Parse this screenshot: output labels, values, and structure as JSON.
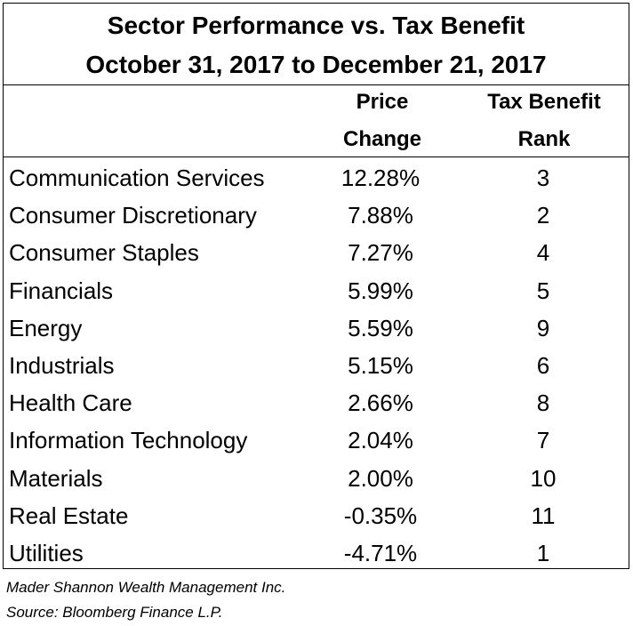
{
  "chart_data": {
    "type": "table",
    "title": "Sector Performance vs. Tax Benefit",
    "subtitle": "October 31, 2017 to December 21, 2017",
    "columns": [
      {
        "line1": "",
        "line2": ""
      },
      {
        "line1": "Price",
        "line2": "Change"
      },
      {
        "line1": "Tax Benefit",
        "line2": "Rank"
      }
    ],
    "rows": [
      {
        "sector": "Communication Services",
        "price_change": "12.28%",
        "rank": "3"
      },
      {
        "sector": "Consumer Discretionary",
        "price_change": "7.88%",
        "rank": "2"
      },
      {
        "sector": "Consumer Staples",
        "price_change": "7.27%",
        "rank": "4"
      },
      {
        "sector": "Financials",
        "price_change": "5.99%",
        "rank": "5"
      },
      {
        "sector": "Energy",
        "price_change": "5.59%",
        "rank": "9"
      },
      {
        "sector": "Industrials",
        "price_change": "5.15%",
        "rank": "6"
      },
      {
        "sector": "Health Care",
        "price_change": "2.66%",
        "rank": "8"
      },
      {
        "sector": "Information Technology",
        "price_change": "2.04%",
        "rank": "7"
      },
      {
        "sector": "Materials",
        "price_change": "2.00%",
        "rank": "10"
      },
      {
        "sector": "Real Estate",
        "price_change": "-0.35%",
        "rank": "11"
      },
      {
        "sector": "Utilities",
        "price_change": "-4.71%",
        "rank": "1"
      }
    ]
  },
  "footnotes": {
    "line1": "Mader Shannon Wealth Management Inc.",
    "line2": "Source: Bloomberg Finance L.P."
  }
}
